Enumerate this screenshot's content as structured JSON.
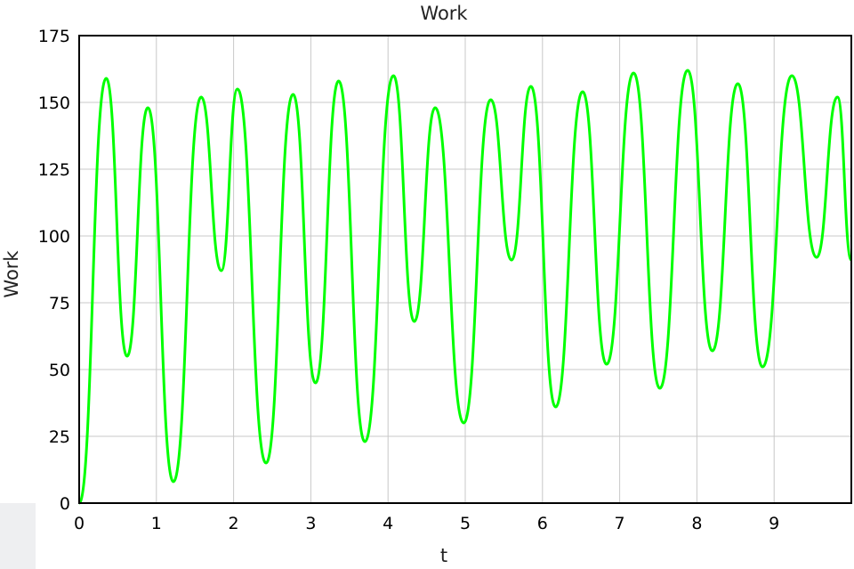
{
  "chart_data": {
    "type": "line",
    "title": "Work",
    "xlabel": "t",
    "ylabel": "Work",
    "xlim": [
      0,
      10
    ],
    "ylim": [
      0,
      175
    ],
    "xticks": [
      0,
      1,
      2,
      3,
      4,
      5,
      6,
      7,
      8,
      9
    ],
    "yticks": [
      0,
      25,
      50,
      75,
      100,
      125,
      150,
      175
    ],
    "grid": true,
    "legend": "none",
    "series": [
      {
        "color": "#00ff00",
        "x": [
          0,
          0.35,
          0.62,
          0.89,
          1.22,
          1.58,
          1.84,
          2.05,
          2.42,
          2.77,
          3.06,
          3.36,
          3.7,
          4.07,
          4.34,
          4.61,
          4.98,
          5.33,
          5.6,
          5.85,
          6.17,
          6.52,
          6.83,
          7.18,
          7.52,
          7.88,
          8.2,
          8.53,
          8.85,
          9.23,
          9.55,
          9.82,
          10.0
        ],
        "values": [
          0,
          159,
          55,
          148,
          8,
          152,
          87,
          155,
          15,
          153,
          45,
          158,
          23,
          160,
          68,
          148,
          30,
          151,
          91,
          156,
          36,
          154,
          52,
          161,
          43,
          162,
          57,
          157,
          51,
          160,
          92,
          152,
          91
        ]
      }
    ]
  },
  "colors": {
    "line": "#00ff00",
    "grid": "#c8c8c8",
    "frame": "#000000"
  }
}
